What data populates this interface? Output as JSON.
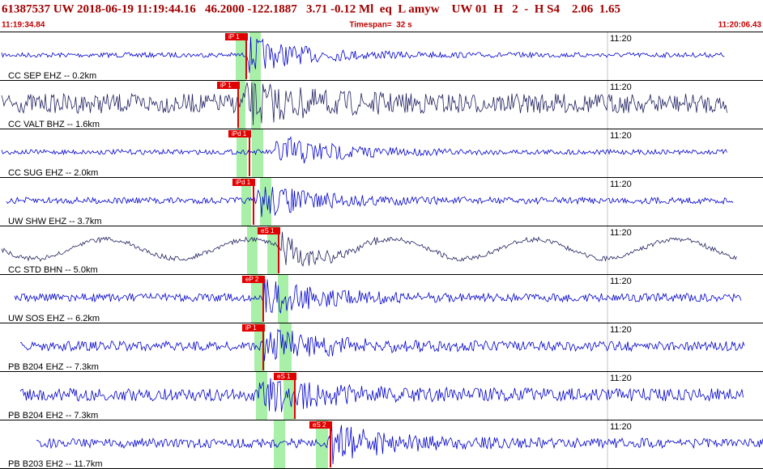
{
  "header": {
    "title": "61387537 UW 2018-06-19 11:19:44.16   46.2000 -122.1887   3.71 -0.12 Ml  eq  L amyw    UW 01  H   2  -  H S4    2.06  1.65",
    "start_time": "11:19:34.84",
    "timespan": "Timespan=  32 s",
    "end_time": "11:20:06.43"
  },
  "traces": [
    {
      "label": "CC SEP EHZ -- 0.2km",
      "time_mark": "11:20",
      "pick": "iP 1"
    },
    {
      "label": "CC VALT BHZ -- 1.6km",
      "time_mark": "11:20",
      "pick": "iP 1"
    },
    {
      "label": "CC SUG EHZ -- 2.0km",
      "time_mark": "11:20",
      "pick": "iPd 1"
    },
    {
      "label": "UW SHW EHZ -- 3.7km",
      "time_mark": "11:20",
      "pick": "iPd 1"
    },
    {
      "label": "CC STD BHN -- 5.0km",
      "time_mark": "11:20",
      "pick": "eS 1"
    },
    {
      "label": "UW SOS EHZ -- 6.2km",
      "time_mark": "11:20",
      "pick": "eP 2"
    },
    {
      "label": "PB B204 EHZ -- 7.3km",
      "time_mark": "11:20",
      "pick": "iP 1"
    },
    {
      "label": "PB B204 EH2 -- 7.3km",
      "time_mark": "11:20",
      "pick": "eS 1"
    },
    {
      "label": "PB B203 EH2 -- 11.7km",
      "time_mark": "11:20",
      "pick": "eS 2"
    }
  ]
}
